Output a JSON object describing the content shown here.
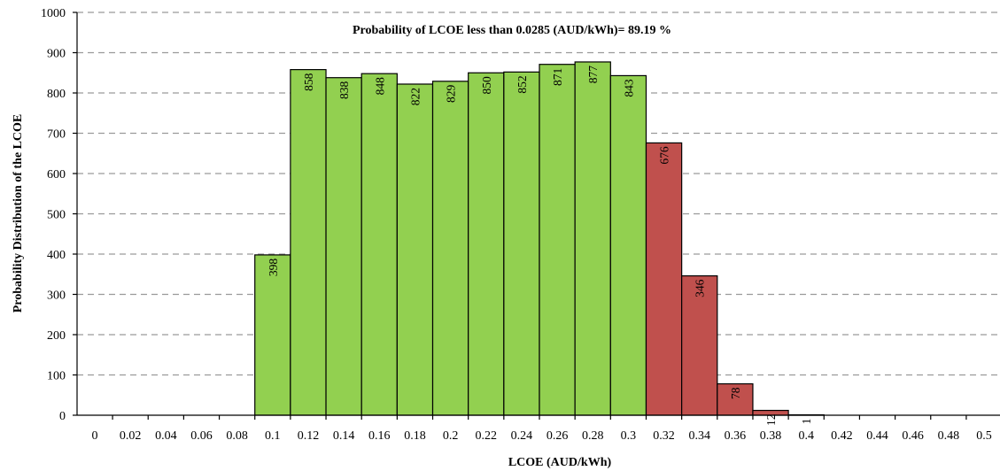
{
  "chart_data": {
    "type": "bar",
    "title": "Probability of LCOE less than 0.0285 (AUD/kWh)= 89.19 %",
    "xlabel": "LCOE (AUD/kWh)",
    "ylabel": "Probability Distribution of the LCOE",
    "ylim": [
      0,
      1000
    ],
    "yticks": [
      "0",
      "100",
      "200",
      "300",
      "400",
      "500",
      "600",
      "700",
      "800",
      "900",
      "1000"
    ],
    "xticks": [
      "0",
      "0.02",
      "0.04",
      "0.06",
      "0.08",
      "0.1",
      "0.12",
      "0.14",
      "0.16",
      "0.18",
      "0.2",
      "0.22",
      "0.24",
      "0.26",
      "0.28",
      "0.3",
      "0.32",
      "0.34",
      "0.36",
      "0.38",
      "0.4",
      "0.42",
      "0.44",
      "0.46",
      "0.48",
      "0.5"
    ],
    "grid": true,
    "legend": "none",
    "colors": {
      "below": "#92d050",
      "above": "#c0504d"
    },
    "bars": [
      {
        "x0": 0.0,
        "x1": 0.02,
        "value": 0,
        "label": "0",
        "group": "below"
      },
      {
        "x0": 0.02,
        "x1": 0.04,
        "value": 0,
        "label": "0",
        "group": "below"
      },
      {
        "x0": 0.04,
        "x1": 0.06,
        "value": 0,
        "label": "0",
        "group": "below"
      },
      {
        "x0": 0.06,
        "x1": 0.08,
        "value": 0,
        "label": "0",
        "group": "below"
      },
      {
        "x0": 0.08,
        "x1": 0.1,
        "value": 398,
        "label": "398",
        "group": "below"
      },
      {
        "x0": 0.1,
        "x1": 0.12,
        "value": 858,
        "label": "858",
        "group": "below"
      },
      {
        "x0": 0.12,
        "x1": 0.14,
        "value": 838,
        "label": "838",
        "group": "below"
      },
      {
        "x0": 0.14,
        "x1": 0.16,
        "value": 848,
        "label": "848",
        "group": "below"
      },
      {
        "x0": 0.16,
        "x1": 0.18,
        "value": 822,
        "label": "822",
        "group": "below"
      },
      {
        "x0": 0.18,
        "x1": 0.2,
        "value": 829,
        "label": "829",
        "group": "below"
      },
      {
        "x0": 0.2,
        "x1": 0.22,
        "value": 850,
        "label": "850",
        "group": "below"
      },
      {
        "x0": 0.22,
        "x1": 0.24,
        "value": 852,
        "label": "852",
        "group": "below"
      },
      {
        "x0": 0.24,
        "x1": 0.26,
        "value": 871,
        "label": "871",
        "group": "below"
      },
      {
        "x0": 0.26,
        "x1": 0.28,
        "value": 877,
        "label": "877",
        "group": "below"
      },
      {
        "x0": 0.28,
        "x1": 0.3,
        "value": 843,
        "label": "843",
        "group": "below"
      },
      {
        "x0": 0.3,
        "x1": 0.32,
        "value": 676,
        "label": "676",
        "group": "above"
      },
      {
        "x0": 0.32,
        "x1": 0.34,
        "value": 346,
        "label": "346",
        "group": "above"
      },
      {
        "x0": 0.34,
        "x1": 0.36,
        "value": 78,
        "label": "78",
        "group": "above"
      },
      {
        "x0": 0.36,
        "x1": 0.38,
        "value": 12,
        "label": "12",
        "group": "above"
      },
      {
        "x0": 0.38,
        "x1": 0.4,
        "value": 1,
        "label": "1",
        "group": "above"
      },
      {
        "x0": 0.4,
        "x1": 0.42,
        "value": 0,
        "label": "",
        "group": "above"
      },
      {
        "x0": 0.42,
        "x1": 0.44,
        "value": 0,
        "label": "",
        "group": "above"
      },
      {
        "x0": 0.44,
        "x1": 0.46,
        "value": 0,
        "label": "",
        "group": "above"
      },
      {
        "x0": 0.46,
        "x1": 0.48,
        "value": 0,
        "label": "",
        "group": "above"
      },
      {
        "x0": 0.48,
        "x1": 0.5,
        "value": 0,
        "label": "",
        "group": "above"
      }
    ]
  }
}
